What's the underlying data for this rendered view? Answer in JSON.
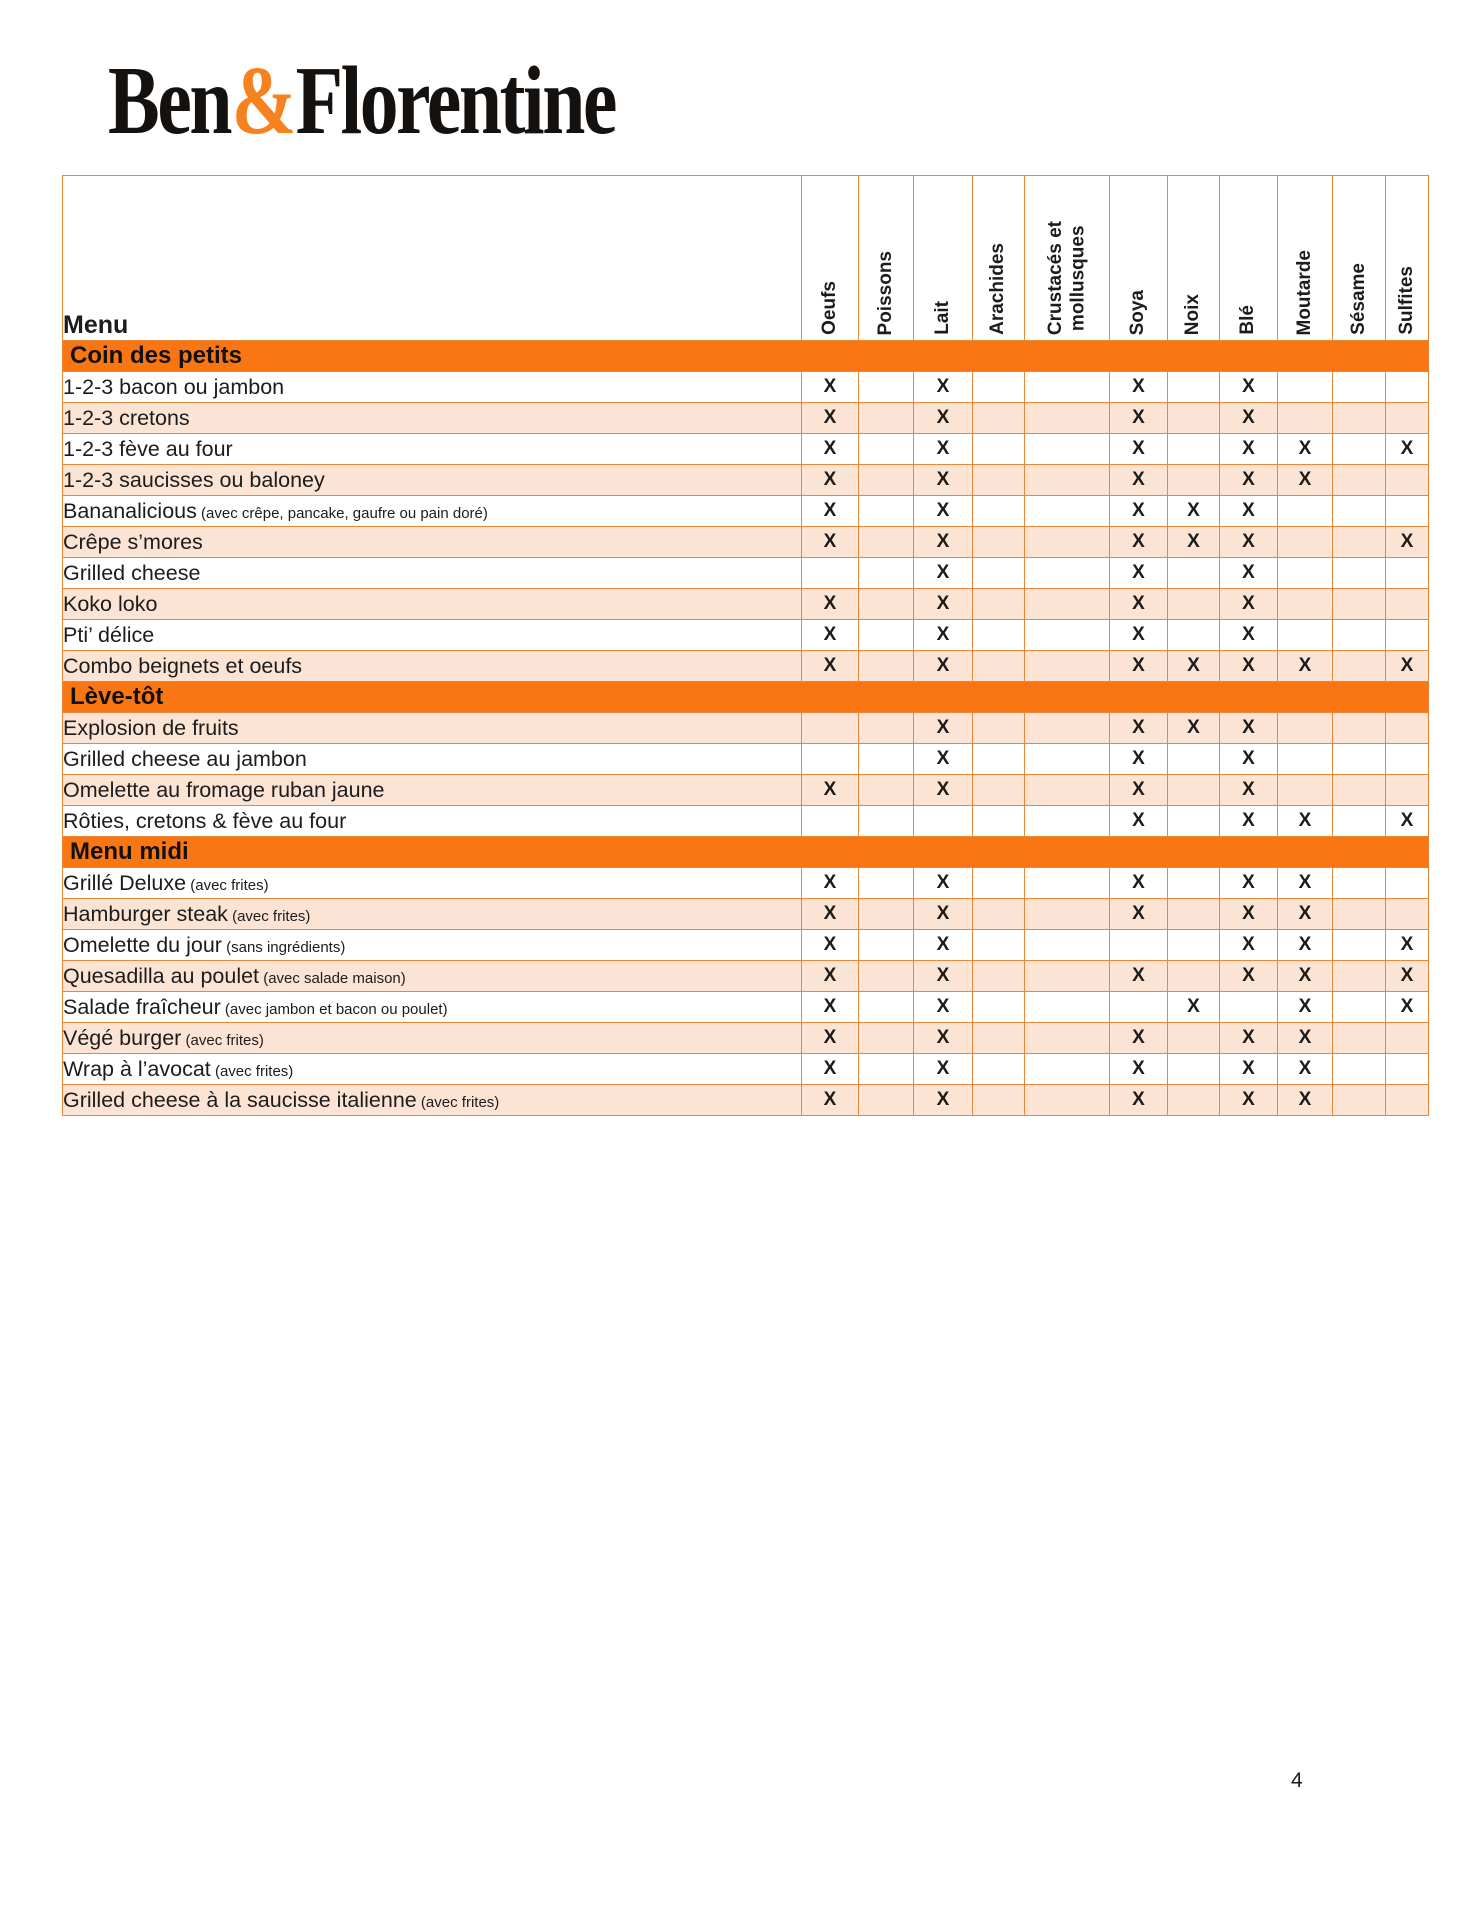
{
  "logo": {
    "part1": "Ben",
    "amp": "&",
    "part2": "Florentine"
  },
  "page_number": "4",
  "colors": {
    "section_bar_orange": "#fa7613",
    "row_shade_peach": "#fce4d5",
    "grid_border_orange": "#e8873b",
    "logo_ampersand_orange": "#f5821e"
  },
  "table": {
    "menu_header": "Menu",
    "mark_symbol": "X",
    "allergen_columns": [
      "Oeufs",
      "Poissons",
      "Lait",
      "Arachides",
      "Crustacés et\nmollusques",
      "Soya",
      "Noix",
      "Blé",
      "Moutarde",
      "Sésame",
      "Sulfites"
    ],
    "sections": [
      {
        "title": "Coin des petits",
        "items": [
          {
            "name": "1-2-3 bacon ou jambon",
            "note": "",
            "allergens": [
              "Oeufs",
              "Lait",
              "Soya",
              "Blé"
            ]
          },
          {
            "name": "1-2-3 cretons",
            "note": "",
            "allergens": [
              "Oeufs",
              "Lait",
              "Soya",
              "Blé"
            ]
          },
          {
            "name": "1-2-3 fève au four",
            "note": "",
            "allergens": [
              "Oeufs",
              "Lait",
              "Soya",
              "Blé",
              "Moutarde",
              "Sulfites"
            ]
          },
          {
            "name": "1-2-3 saucisses ou baloney",
            "note": "",
            "allergens": [
              "Oeufs",
              "Lait",
              "Soya",
              "Blé",
              "Moutarde"
            ]
          },
          {
            "name": "Bananalicious",
            "note": "(avec crêpe, pancake, gaufre ou pain doré)",
            "allergens": [
              "Oeufs",
              "Lait",
              "Soya",
              "Noix",
              "Blé"
            ]
          },
          {
            "name": "Crêpe s’mores",
            "note": "",
            "allergens": [
              "Oeufs",
              "Lait",
              "Soya",
              "Noix",
              "Blé",
              "Sulfites"
            ]
          },
          {
            "name": "Grilled cheese",
            "note": "",
            "allergens": [
              "Lait",
              "Soya",
              "Blé"
            ]
          },
          {
            "name": "Koko loko",
            "note": "",
            "allergens": [
              "Oeufs",
              "Lait",
              "Soya",
              "Blé"
            ]
          },
          {
            "name": "Pti’ délice",
            "note": "",
            "allergens": [
              "Oeufs",
              "Lait",
              "Soya",
              "Blé"
            ]
          },
          {
            "name": "Combo beignets et oeufs",
            "note": "",
            "allergens": [
              "Oeufs",
              "Lait",
              "Soya",
              "Noix",
              "Blé",
              "Moutarde",
              "Sulfites"
            ]
          }
        ]
      },
      {
        "title": "Lève-tôt",
        "items": [
          {
            "name": "Explosion de fruits",
            "note": "",
            "allergens": [
              "Lait",
              "Soya",
              "Noix",
              "Blé"
            ]
          },
          {
            "name": "Grilled cheese au jambon",
            "note": "",
            "allergens": [
              "Lait",
              "Soya",
              "Blé"
            ]
          },
          {
            "name": "Omelette au fromage ruban jaune",
            "note": "",
            "allergens": [
              "Oeufs",
              "Lait",
              "Soya",
              "Blé"
            ]
          },
          {
            "name": "Rôties, cretons & fève au four",
            "note": "",
            "allergens": [
              "Soya",
              "Blé",
              "Moutarde",
              "Sulfites"
            ]
          }
        ]
      },
      {
        "title": "Menu midi",
        "items": [
          {
            "name": "Grillé Deluxe",
            "note": "(avec frites)",
            "allergens": [
              "Oeufs",
              "Lait",
              "Soya",
              "Blé",
              "Moutarde"
            ]
          },
          {
            "name": "Hamburger steak",
            "note": "(avec frites)",
            "allergens": [
              "Oeufs",
              "Lait",
              "Soya",
              "Blé",
              "Moutarde"
            ]
          },
          {
            "name": "Omelette du jour",
            "note": "(sans ingrédients)",
            "allergens": [
              "Oeufs",
              "Lait",
              "Blé",
              "Moutarde",
              "Sulfites"
            ]
          },
          {
            "name": "Quesadilla au poulet",
            "note": "(avec salade maison)",
            "allergens": [
              "Oeufs",
              "Lait",
              "Soya",
              "Blé",
              "Moutarde",
              "Sulfites"
            ]
          },
          {
            "name": "Salade fraîcheur",
            "note": "(avec jambon et bacon ou poulet)",
            "allergens": [
              "Oeufs",
              "Lait",
              "Noix",
              "Moutarde",
              "Sulfites"
            ]
          },
          {
            "name": "Végé burger",
            "note": "(avec frites)",
            "allergens": [
              "Oeufs",
              "Lait",
              "Soya",
              "Blé",
              "Moutarde"
            ]
          },
          {
            "name": "Wrap à l’avocat",
            "note": "(avec frites)",
            "allergens": [
              "Oeufs",
              "Lait",
              "Soya",
              "Blé",
              "Moutarde"
            ]
          },
          {
            "name": "Grilled cheese à la saucisse italienne",
            "note": "(avec frites)",
            "allergens": [
              "Oeufs",
              "Lait",
              "Soya",
              "Blé",
              "Moutarde"
            ]
          }
        ]
      }
    ]
  }
}
